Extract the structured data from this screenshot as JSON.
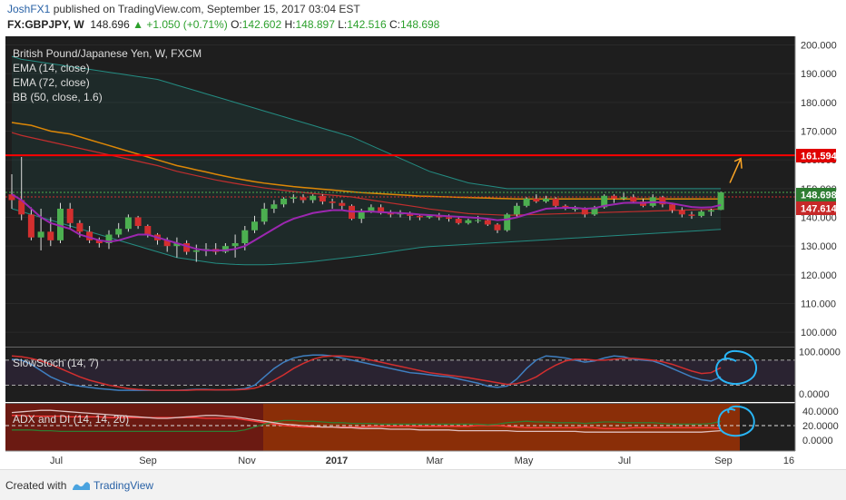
{
  "header": {
    "user": "JoshFX1",
    "published": "published on TradingView.com, September 15, 2017 03:04 EST",
    "symbol": "FX:GBPJPY, W",
    "price": "148.696",
    "change": "+1.050 (+0.71%)",
    "o_label": "O:",
    "o": "142.602",
    "h_label": "H:",
    "h": "148.897",
    "l_label": "L:",
    "l": "142.516",
    "c_label": "C:",
    "c": "148.698"
  },
  "legend": {
    "title": "British Pound/Japanese Yen, W, FXCM",
    "ema14": "EMA (14, close)",
    "ema72": "EMA (72, close)",
    "bb": "BB (50, close, 1.6)",
    "stoch": "SlowStoch (14, 7)",
    "adx": "ADX and DI (14, 14, 20)"
  },
  "price_badges": {
    "resistance": "161.594",
    "last": "148.698",
    "ema": "147.614"
  },
  "footer": {
    "created": "Created with",
    "brand": "TradingView"
  },
  "colors": {
    "bull": "#4caf50",
    "bear": "#d32f2f",
    "ema14": "#9c27b0",
    "ema72": "#ff9800",
    "bb": "#26a69a",
    "resistance": "#ff0000",
    "stoch_k": "#3f7fc0",
    "stoch_d": "#d32f2f",
    "annotation": "#29b6f6",
    "arrow": "#ffa726"
  },
  "chart_data": {
    "type": "candlestick",
    "title": "British Pound/Japanese Yen, W, FXCM",
    "ylim": [
      95,
      203
    ],
    "y_ticks": [
      "200.000",
      "190.000",
      "180.000",
      "170.000",
      "160.000",
      "150.000",
      "140.000",
      "130.000",
      "120.000",
      "110.000",
      "100.000"
    ],
    "x_ticks": [
      "Jul",
      "Sep",
      "Nov",
      "2017",
      "Mar",
      "May",
      "Jul",
      "Sep",
      "16"
    ],
    "resistance_level": 161.594,
    "ohlc": [
      [
        148.0,
        155.0,
        143.0,
        146.0
      ],
      [
        146.0,
        161.0,
        139.0,
        141.0
      ],
      [
        141.0,
        143.5,
        132.0,
        133.0
      ],
      [
        133.0,
        143.0,
        128.5,
        135.0
      ],
      [
        135.0,
        140.0,
        130.0,
        132.0
      ],
      [
        132.0,
        145.0,
        131.0,
        143.0
      ],
      [
        143.0,
        145.0,
        136.0,
        138.0
      ],
      [
        138.0,
        139.0,
        133.0,
        135.0
      ],
      [
        135.0,
        137.0,
        131.0,
        132.0
      ],
      [
        132.0,
        133.0,
        129.5,
        131.0
      ],
      [
        131.0,
        135.5,
        129.0,
        134.0
      ],
      [
        134.0,
        138.0,
        133.0,
        136.0
      ],
      [
        136.0,
        141.0,
        135.0,
        140.0
      ],
      [
        140.0,
        140.5,
        136.0,
        137.0
      ],
      [
        137.0,
        137.5,
        133.0,
        134.0
      ],
      [
        134.0,
        134.5,
        130.5,
        132.0
      ],
      [
        132.0,
        133.0,
        128.0,
        130.0
      ],
      [
        130.0,
        133.0,
        126.0,
        131.0
      ],
      [
        131.0,
        132.0,
        127.0,
        128.0
      ],
      [
        128.0,
        130.5,
        124.5,
        128.5
      ],
      [
        128.5,
        131.0,
        126.5,
        129.0
      ],
      [
        129.0,
        131.0,
        127.0,
        128.0
      ],
      [
        128.0,
        131.0,
        127.5,
        130.0
      ],
      [
        130.0,
        134.0,
        126.0,
        131.0
      ],
      [
        131.0,
        137.0,
        128.5,
        135.5
      ],
      [
        135.5,
        140.5,
        134.5,
        138.5
      ],
      [
        138.5,
        145.0,
        137.5,
        143.0
      ],
      [
        143.0,
        146.0,
        141.5,
        144.5
      ],
      [
        144.5,
        147.0,
        143.5,
        146.5
      ],
      [
        146.5,
        148.0,
        145.0,
        147.0
      ],
      [
        147.0,
        148.0,
        145.0,
        146.0
      ],
      [
        146.0,
        148.0,
        145.0,
        147.5
      ],
      [
        147.5,
        148.0,
        144.5,
        145.5
      ],
      [
        145.5,
        146.5,
        143.0,
        145.0
      ],
      [
        145.0,
        146.0,
        142.5,
        144.0
      ],
      [
        144.0,
        144.5,
        139.0,
        139.5
      ],
      [
        139.5,
        143.0,
        138.0,
        142.0
      ],
      [
        142.0,
        144.5,
        141.5,
        143.5
      ],
      [
        143.5,
        144.5,
        141.0,
        141.5
      ],
      [
        141.5,
        142.5,
        140.0,
        141.0
      ],
      [
        141.0,
        142.5,
        140.0,
        141.5
      ],
      [
        141.5,
        142.0,
        139.0,
        140.5
      ],
      [
        140.5,
        141.0,
        139.0,
        140.0
      ],
      [
        140.0,
        141.0,
        139.5,
        140.5
      ],
      [
        140.5,
        141.5,
        139.0,
        140.0
      ],
      [
        140.0,
        141.0,
        138.5,
        139.5
      ],
      [
        139.5,
        140.0,
        137.5,
        138.0
      ],
      [
        138.0,
        139.5,
        137.5,
        139.0
      ],
      [
        139.0,
        140.5,
        138.0,
        139.0
      ],
      [
        139.0,
        139.5,
        137.0,
        137.5
      ],
      [
        137.5,
        138.0,
        134.5,
        135.5
      ],
      [
        135.5,
        141.5,
        135.0,
        141.0
      ],
      [
        141.0,
        145.0,
        140.0,
        144.0
      ],
      [
        144.0,
        147.0,
        143.5,
        146.5
      ],
      [
        146.5,
        148.0,
        145.0,
        145.5
      ],
      [
        145.5,
        147.5,
        145.0,
        146.5
      ],
      [
        146.5,
        147.0,
        143.5,
        144.0
      ],
      [
        144.0,
        144.5,
        142.5,
        143.0
      ],
      [
        143.0,
        144.0,
        142.0,
        143.0
      ],
      [
        143.0,
        143.5,
        140.0,
        141.0
      ],
      [
        141.0,
        144.0,
        140.5,
        143.5
      ],
      [
        143.5,
        148.0,
        143.0,
        147.5
      ],
      [
        147.5,
        148.0,
        145.0,
        146.5
      ],
      [
        146.5,
        148.5,
        146.0,
        147.0
      ],
      [
        147.0,
        148.0,
        145.0,
        145.5
      ],
      [
        145.5,
        146.5,
        143.5,
        144.0
      ],
      [
        144.0,
        148.0,
        143.5,
        147.0
      ],
      [
        147.0,
        147.5,
        143.5,
        144.5
      ],
      [
        144.5,
        145.0,
        141.5,
        142.5
      ],
      [
        142.5,
        143.5,
        140.0,
        141.0
      ],
      [
        141.0,
        142.0,
        139.5,
        140.5
      ],
      [
        140.5,
        142.5,
        140.0,
        142.0
      ],
      [
        142.0,
        143.0,
        140.5,
        142.5
      ],
      [
        142.6,
        148.9,
        142.5,
        148.7
      ]
    ],
    "ema14": [
      148,
      146,
      143,
      140,
      138,
      137,
      136,
      134,
      133,
      132,
      131.5,
      132,
      133,
      134,
      134,
      133,
      132,
      131,
      130,
      129,
      128.5,
      128.5,
      128.5,
      129,
      130,
      132,
      134,
      136,
      138,
      139.5,
      140.5,
      141.5,
      142,
      142.5,
      142.5,
      142,
      142,
      142,
      141.8,
      141.6,
      141.5,
      141.3,
      141,
      140.8,
      140.6,
      140.4,
      140.2,
      140,
      139.8,
      139.5,
      139,
      139.3,
      140,
      141,
      142,
      143,
      143.2,
      143.3,
      143.3,
      143,
      143.2,
      144,
      144.5,
      145,
      145.1,
      145,
      145.3,
      145.2,
      144.8,
      144.2,
      143.6,
      143.4,
      143.5,
      144.3
    ],
    "ema72": [
      173,
      172.5,
      172,
      171,
      170,
      169.5,
      169,
      168,
      167,
      166,
      165,
      164,
      163,
      162,
      161,
      160,
      159,
      158,
      157.3,
      156.5,
      155.8,
      155,
      154.3,
      153.6,
      153,
      152.4,
      151.9,
      151.5,
      151.1,
      150.7,
      150.4,
      150.1,
      149.8,
      149.5,
      149.2,
      148.9,
      148.6,
      148.4,
      148.2,
      148,
      147.8,
      147.6,
      147.4,
      147.3,
      147.2,
      147.1,
      147,
      146.9,
      146.8,
      146.7,
      146.6,
      146.5,
      146.4,
      146.4,
      146.4,
      146.4,
      146.4,
      146.4,
      146.4,
      146.4,
      146.4,
      146.4,
      146.4,
      146.4,
      146.4,
      146.4,
      146.4,
      146.4,
      146.4,
      146.4,
      146.4,
      146.4,
      146.4,
      146.4
    ],
    "bb_upper": [
      196,
      195,
      194.5,
      194,
      193.5,
      193,
      192.5,
      192,
      191.5,
      191,
      190.5,
      190,
      189.5,
      189,
      188.5,
      188,
      187,
      186,
      185,
      184,
      183,
      182,
      181,
      180,
      179,
      178,
      177,
      176,
      175,
      174,
      173,
      172,
      171,
      170,
      169,
      168,
      166.5,
      165,
      163.5,
      162,
      160.5,
      159,
      157.5,
      156,
      155,
      154,
      153,
      152,
      151.5,
      151,
      150.5,
      150,
      150,
      150,
      150,
      150,
      150,
      150,
      150,
      150,
      150,
      150,
      150,
      150,
      150,
      150,
      150,
      150,
      150,
      150,
      150,
      150,
      150,
      150
    ],
    "bb_lower": [
      143,
      142,
      141,
      140,
      139,
      138,
      137,
      136,
      135,
      134,
      133,
      132,
      131,
      130,
      129,
      128,
      127,
      126,
      125.5,
      125,
      124.5,
      124,
      123.8,
      123.6,
      123.5,
      123.5,
      123.5,
      123.6,
      123.8,
      124,
      124.3,
      124.6,
      125,
      125.4,
      125.8,
      126.2,
      126.6,
      127,
      127.5,
      128,
      128.5,
      129,
      129.5,
      129.8,
      130,
      130.2,
      130.4,
      130.6,
      130.8,
      131,
      131.2,
      131.4,
      131.6,
      131.8,
      132,
      132.2,
      132.4,
      132.6,
      132.8,
      133,
      133.2,
      133.4,
      133.6,
      133.8,
      134,
      134.2,
      134.4,
      134.6,
      134.8,
      135,
      135.2,
      135.4,
      135.6,
      135.8
    ],
    "stoch_ylim": [
      -20,
      110
    ],
    "stoch_y_ticks": [
      "100.0000",
      "0.0000"
    ],
    "stoch_k": [
      82,
      80,
      70,
      55,
      40,
      30,
      22,
      18,
      15,
      12,
      10,
      8,
      8,
      8,
      8,
      8,
      8,
      8,
      9,
      10,
      10,
      9,
      9,
      10,
      12,
      20,
      40,
      60,
      75,
      85,
      90,
      92,
      92,
      90,
      85,
      80,
      75,
      70,
      65,
      60,
      55,
      50,
      48,
      45,
      42,
      40,
      35,
      30,
      25,
      18,
      15,
      18,
      35,
      60,
      80,
      90,
      88,
      85,
      80,
      75,
      78,
      85,
      90,
      88,
      82,
      80,
      78,
      70,
      60,
      50,
      40,
      33,
      30,
      40
    ],
    "stoch_d": [
      90,
      88,
      84,
      78,
      70,
      60,
      50,
      40,
      32,
      26,
      20,
      16,
      12,
      10,
      9,
      8,
      8,
      8,
      8,
      9,
      9,
      9,
      9,
      9,
      10,
      13,
      20,
      32,
      45,
      60,
      72,
      82,
      88,
      90,
      90,
      88,
      85,
      80,
      75,
      70,
      65,
      60,
      55,
      50,
      47,
      44,
      41,
      38,
      34,
      30,
      26,
      22,
      24,
      30,
      40,
      55,
      68,
      78,
      82,
      82,
      80,
      80,
      82,
      84,
      84,
      82,
      80,
      76,
      70,
      62,
      54,
      48,
      50,
      62
    ],
    "adx_ylim": [
      -15,
      50
    ],
    "adx_y_ticks": [
      "40.0000",
      "20.0000",
      "0.0000"
    ],
    "adx": [
      38,
      39,
      40,
      41,
      41,
      40,
      39,
      38,
      37,
      36,
      35,
      34,
      33,
      32,
      31,
      30,
      30,
      31,
      32,
      33,
      34,
      34,
      33,
      32,
      30,
      28,
      26,
      24,
      22,
      21,
      20,
      19,
      18,
      18,
      17,
      17,
      16,
      16,
      16,
      15,
      15,
      15,
      14,
      14,
      14,
      14,
      13,
      13,
      13,
      13,
      13,
      13,
      12,
      12,
      12,
      12,
      12,
      12,
      12,
      11,
      11,
      11,
      11,
      11,
      11,
      11,
      11,
      11,
      11,
      11,
      11,
      11,
      12,
      13
    ],
    "di_plus": [
      14,
      14,
      14,
      13,
      13,
      12,
      12,
      12,
      12,
      12,
      12,
      12,
      12,
      12,
      12,
      12,
      12,
      12,
      12,
      12,
      12,
      12,
      12,
      12,
      14,
      18,
      22,
      25,
      27,
      27,
      26,
      26,
      25,
      24,
      24,
      23,
      23,
      23,
      22,
      22,
      22,
      22,
      22,
      22,
      22,
      22,
      22,
      22,
      22,
      21,
      22,
      24,
      25,
      26,
      25,
      25,
      24,
      24,
      24,
      23,
      24,
      25,
      25,
      24,
      24,
      24,
      24,
      23,
      22,
      22,
      22,
      22,
      23,
      26
    ],
    "di_minus": [
      34,
      34,
      33,
      33,
      33,
      33,
      32,
      32,
      32,
      32,
      31,
      31,
      31,
      31,
      31,
      31,
      31,
      31,
      31,
      31,
      30,
      30,
      30,
      30,
      28,
      26,
      24,
      22,
      20,
      19,
      18,
      18,
      18,
      18,
      18,
      18,
      18,
      19,
      19,
      19,
      19,
      19,
      19,
      19,
      19,
      19,
      19,
      19,
      20,
      20,
      20,
      19,
      18,
      17,
      17,
      17,
      17,
      17,
      17,
      18,
      17,
      16,
      16,
      16,
      17,
      17,
      17,
      17,
      17,
      17,
      17,
      17,
      17,
      16
    ]
  }
}
